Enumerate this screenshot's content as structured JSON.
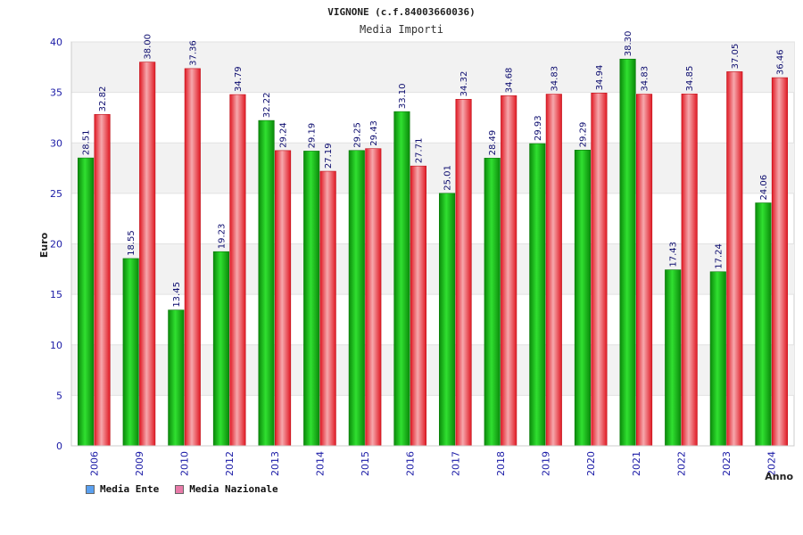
{
  "chart_data": {
    "type": "bar",
    "title": "VIGNONE (c.f.84003660036)",
    "subtitle": "Media Importi",
    "xlabel": "Anno",
    "ylabel": "Euro",
    "ylim": [
      0,
      40
    ],
    "yticks": [
      0,
      5,
      10,
      15,
      20,
      25,
      30,
      35,
      40
    ],
    "categories": [
      "2006",
      "2009",
      "2010",
      "2012",
      "2013",
      "2014",
      "2015",
      "2016",
      "2017",
      "2018",
      "2019",
      "2020",
      "2021",
      "2022",
      "2023",
      "2024"
    ],
    "series": [
      {
        "name": "Media Ente",
        "color": "#1bbf1b",
        "legend_color": "#5aa0f0",
        "values": [
          28.51,
          18.55,
          13.45,
          19.23,
          32.22,
          29.19,
          29.25,
          33.1,
          25.01,
          28.49,
          29.93,
          29.29,
          38.3,
          17.43,
          17.24,
          24.06
        ],
        "labels": [
          "28.51",
          "18.55",
          "13.45",
          "19.23",
          "32.22",
          "29.19",
          "29.25",
          "33.10",
          "25.01",
          "28.49",
          "29.93",
          "29.29",
          "38.30",
          "17.43",
          "17.24",
          "24.06"
        ]
      },
      {
        "name": "Media Nazionale",
        "color": "#e8202a",
        "legend_color": "#e87aa8",
        "values": [
          32.82,
          38.0,
          37.36,
          34.79,
          29.24,
          27.19,
          29.43,
          27.71,
          34.32,
          34.68,
          34.83,
          34.94,
          34.83,
          34.85,
          37.05,
          36.46
        ],
        "labels": [
          "32.82",
          "38.00",
          "37.36",
          "34.79",
          "29.24",
          "27.19",
          "29.43",
          "27.71",
          "34.32",
          "34.68",
          "34.83",
          "34.94",
          "34.83",
          "34.85",
          "37.05",
          "36.46"
        ]
      }
    ]
  }
}
